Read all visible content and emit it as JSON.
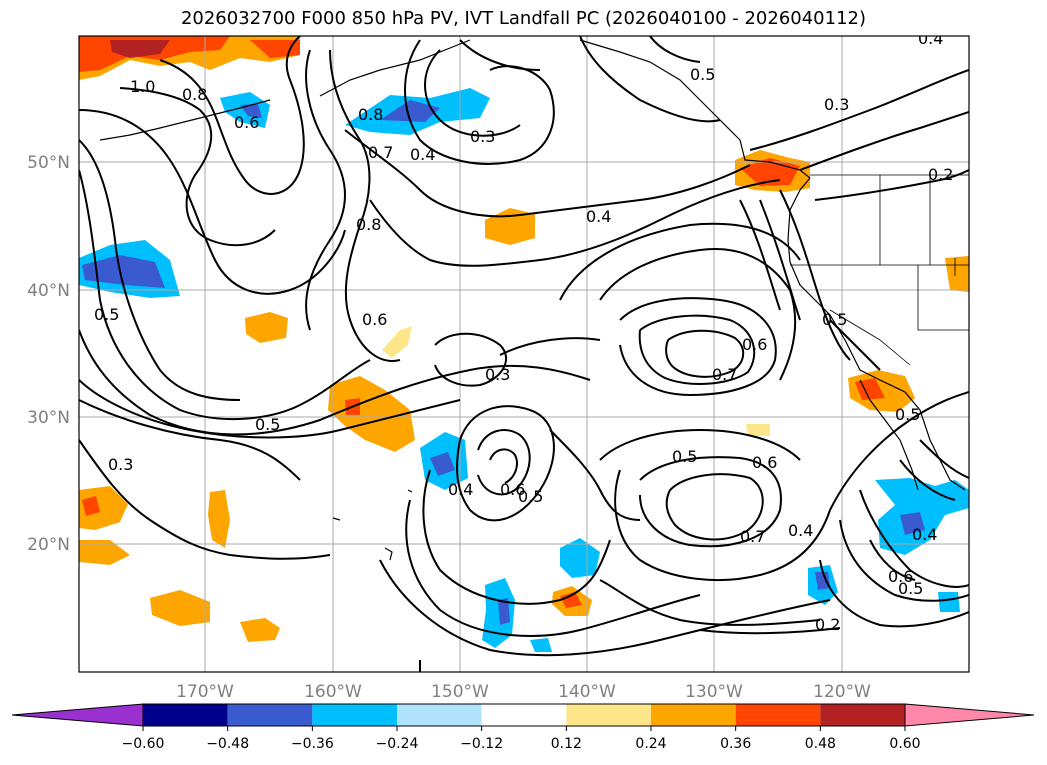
{
  "title": "2026032700 F000 850 hPa PV, IVT Landfall PC (2026040100 - 2026040112)",
  "lon_labels": [
    "170°W",
    "160°W",
    "150°W",
    "140°W",
    "130°W",
    "120°W"
  ],
  "lat_labels": [
    "50°N",
    "40°N",
    "30°N",
    "20°N"
  ],
  "colorbar": {
    "ticks": [
      "−0.60",
      "−0.48",
      "−0.36",
      "−0.24",
      "−0.12",
      "0.12",
      "0.24",
      "0.36",
      "0.48",
      "0.60"
    ],
    "colors": [
      "#9b30d0",
      "#00008b",
      "#3a5bd0",
      "#00bfff",
      "#aee3fb",
      "#ffffff",
      "#fde68a",
      "#ffa500",
      "#ff4500",
      "#b22222",
      "#ff88aa"
    ]
  },
  "contour_labels": [
    {
      "text": "1.0"
    },
    {
      "text": "0.8"
    },
    {
      "text": "0.6"
    },
    {
      "text": "0.8"
    },
    {
      "text": "0.7"
    },
    {
      "text": "0.4"
    },
    {
      "text": "0.3"
    },
    {
      "text": "0.5"
    },
    {
      "text": "0.3"
    },
    {
      "text": "0.2"
    },
    {
      "text": "0.4"
    },
    {
      "text": "0.8"
    },
    {
      "text": "0.6"
    },
    {
      "text": "0.5"
    },
    {
      "text": "0.3"
    },
    {
      "text": "0.6"
    },
    {
      "text": "0.7"
    },
    {
      "text": "0.5"
    },
    {
      "text": "0.5"
    },
    {
      "text": "0.3"
    },
    {
      "text": "0.4"
    },
    {
      "text": "0.6"
    },
    {
      "text": "0.5"
    },
    {
      "text": "0.5"
    },
    {
      "text": "0.6"
    },
    {
      "text": "0.7"
    },
    {
      "text": "0.4"
    },
    {
      "text": "0.4"
    },
    {
      "text": "0.6"
    },
    {
      "text": "0.5"
    },
    {
      "text": "0.2"
    },
    {
      "text": "0.4"
    },
    {
      "text": "0.5"
    }
  ]
}
